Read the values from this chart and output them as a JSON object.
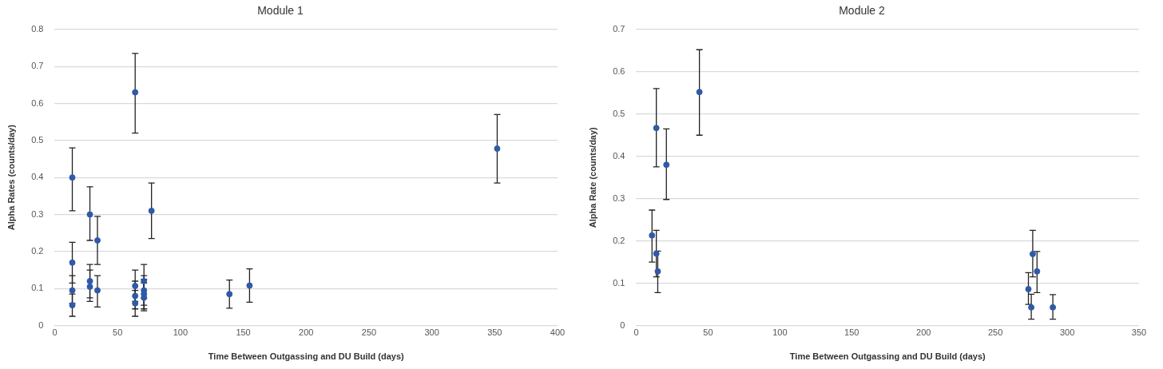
{
  "chart_data": [
    {
      "type": "scatter",
      "title": "Module 1",
      "xlabel": "Time Between Outgassing and DU Build (days)",
      "ylabel": "Alpha Rates (counts/day)",
      "xlim": [
        0,
        400
      ],
      "xticks": [
        0,
        50,
        100,
        150,
        200,
        250,
        300,
        350,
        400
      ],
      "ylim": [
        0,
        0.8
      ],
      "yticks": [
        0,
        0.1,
        0.2,
        0.3,
        0.4,
        0.5,
        0.6,
        0.7,
        0.8
      ],
      "grid": "y",
      "legend": false,
      "marker": "circle",
      "series": [
        {
          "color": "#2f5aa8",
          "x": [
            14,
            14,
            14,
            14,
            28,
            28,
            28,
            34,
            34,
            64,
            64,
            64,
            64,
            71,
            71,
            71,
            71,
            77,
            139,
            155,
            352
          ],
          "values": [
            0.4,
            0.17,
            0.095,
            0.055,
            0.3,
            0.12,
            0.105,
            0.23,
            0.095,
            0.63,
            0.107,
            0.08,
            0.06,
            0.12,
            0.095,
            0.085,
            0.075,
            0.31,
            0.085,
            0.108,
            0.478
          ],
          "errors": [
            [
              0.31,
              0.48
            ],
            [
              0.115,
              0.225
            ],
            [
              0.06,
              0.135
            ],
            [
              0.025,
              0.085
            ],
            [
              0.23,
              0.375
            ],
            [
              0.075,
              0.165
            ],
            [
              0.065,
              0.15
            ],
            [
              0.165,
              0.295
            ],
            [
              0.05,
              0.135
            ],
            [
              0.52,
              0.735
            ],
            [
              0.065,
              0.15
            ],
            [
              0.045,
              0.12
            ],
            [
              0.025,
              0.095
            ],
            [
              0.075,
              0.165
            ],
            [
              0.055,
              0.135
            ],
            [
              0.045,
              0.125
            ],
            [
              0.04,
              0.115
            ],
            [
              0.235,
              0.385
            ],
            [
              0.047,
              0.123
            ],
            [
              0.063,
              0.153
            ],
            [
              0.385,
              0.57
            ]
          ]
        }
      ]
    },
    {
      "type": "scatter",
      "title": "Module 2",
      "xlabel": "Time Between Outgassing and DU Build (days)",
      "ylabel": "Alpha Rate (counts/day)",
      "xlim": [
        0,
        350
      ],
      "xticks": [
        0,
        50,
        100,
        150,
        200,
        250,
        300,
        350
      ],
      "ylim": [
        0,
        0.7
      ],
      "yticks": [
        0,
        0.1,
        0.2,
        0.3,
        0.4,
        0.5,
        0.6,
        0.7
      ],
      "grid": "y",
      "legend": false,
      "marker": "circle",
      "series": [
        {
          "color": "#2f5aa8",
          "x": [
            11,
            14,
            14,
            15,
            21,
            44,
            273,
            275,
            276,
            279,
            290
          ],
          "values": [
            0.213,
            0.467,
            0.17,
            0.128,
            0.38,
            0.552,
            0.086,
            0.043,
            0.169,
            0.128,
            0.043
          ],
          "errors": [
            [
              0.15,
              0.273
            ],
            [
              0.375,
              0.56
            ],
            [
              0.115,
              0.225
            ],
            [
              0.078,
              0.176
            ],
            [
              0.298,
              0.465
            ],
            [
              0.45,
              0.652
            ],
            [
              0.05,
              0.125
            ],
            [
              0.015,
              0.074
            ],
            [
              0.115,
              0.225
            ],
            [
              0.078,
              0.175
            ],
            [
              0.015,
              0.073
            ]
          ]
        }
      ]
    }
  ]
}
